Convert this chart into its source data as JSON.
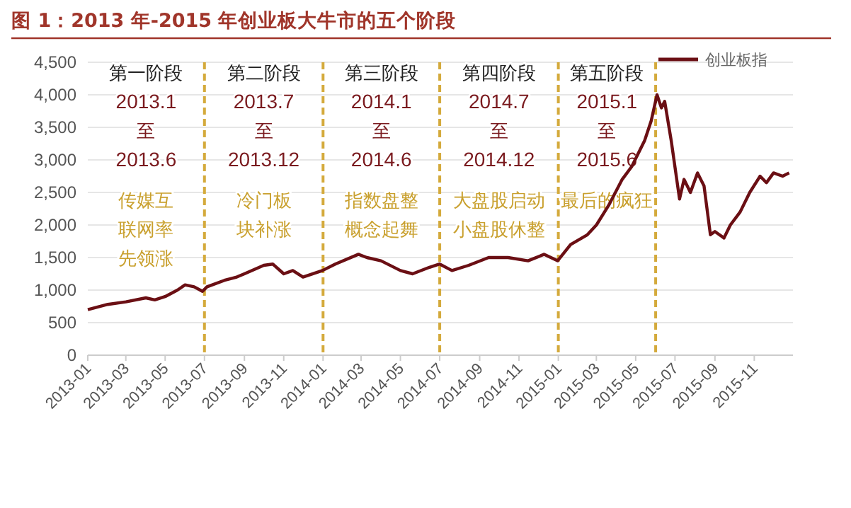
{
  "chart_data": {
    "type": "line",
    "title": "图 1：2013 年-2015 年创业板大牛市的五个阶段",
    "x": [
      "2013-01-01",
      "2013-02-01",
      "2013-03-01",
      "2013-04-01",
      "2013-04-15",
      "2013-05-01",
      "2013-05-20",
      "2013-06-01",
      "2013-06-15",
      "2013-06-28",
      "2013-07-05",
      "2013-08-01",
      "2013-08-20",
      "2013-09-01",
      "2013-10-01",
      "2013-10-15",
      "2013-11-01",
      "2013-11-15",
      "2013-12-01",
      "2013-12-31",
      "2014-01-20",
      "2014-02-25",
      "2014-03-10",
      "2014-04-01",
      "2014-05-01",
      "2014-05-20",
      "2014-06-15",
      "2014-07-01",
      "2014-07-20",
      "2014-08-15",
      "2014-09-15",
      "2014-10-15",
      "2014-11-15",
      "2014-12-10",
      "2014-12-31",
      "2015-01-20",
      "2015-02-15",
      "2015-03-01",
      "2015-03-20",
      "2015-04-10",
      "2015-04-25",
      "2015-05-15",
      "2015-05-25",
      "2015-06-03",
      "2015-06-10",
      "2015-06-15",
      "2015-06-25",
      "2015-07-08",
      "2015-07-15",
      "2015-07-25",
      "2015-08-05",
      "2015-08-15",
      "2015-08-25",
      "2015-09-01",
      "2015-09-15",
      "2015-09-25",
      "2015-10-10",
      "2015-10-25",
      "2015-11-10",
      "2015-11-20",
      "2015-12-01",
      "2015-12-15",
      "2015-12-25"
    ],
    "series": [
      {
        "name": "创业板指",
        "color": "#6b0f14",
        "values": [
          700,
          780,
          820,
          880,
          850,
          900,
          1000,
          1080,
          1050,
          980,
          1050,
          1150,
          1200,
          1250,
          1380,
          1400,
          1250,
          1300,
          1200,
          1300,
          1400,
          1550,
          1500,
          1450,
          1300,
          1250,
          1350,
          1400,
          1300,
          1380,
          1500,
          1500,
          1450,
          1550,
          1450,
          1700,
          1850,
          2000,
          2300,
          2700,
          2900,
          3300,
          3600,
          4000,
          3800,
          3900,
          3300,
          2400,
          2700,
          2500,
          2800,
          2600,
          1850,
          1900,
          1800,
          2000,
          2200,
          2500,
          2750,
          2650,
          2800,
          2750,
          2800
        ]
      }
    ],
    "xlim": [
      "2013-01-01",
      "2015-12-31"
    ],
    "xticks": [
      "2013-01",
      "2013-03",
      "2013-05",
      "2013-07",
      "2013-09",
      "2013-11",
      "2014-01",
      "2014-03",
      "2014-05",
      "2014-07",
      "2014-09",
      "2014-11",
      "2015-01",
      "2015-03",
      "2015-05",
      "2015-07",
      "2015-09",
      "2015-11"
    ],
    "ylim": [
      0,
      4500
    ],
    "yticks": [
      {
        "value": 0,
        "label": "0"
      },
      {
        "value": 500,
        "label": "500"
      },
      {
        "value": 1000,
        "label": "1,000"
      },
      {
        "value": 1500,
        "label": "1,500"
      },
      {
        "value": 2000,
        "label": "2,000"
      },
      {
        "value": 2500,
        "label": "2,500"
      },
      {
        "value": 3000,
        "label": "3,000"
      },
      {
        "value": 3500,
        "label": "3,500"
      },
      {
        "value": 4000,
        "label": "4,000"
      },
      {
        "value": 4500,
        "label": "4,500"
      }
    ],
    "grid": "y",
    "legend": "top right",
    "line_style": "solid",
    "marker": "none",
    "ref_lines": [
      {
        "axis": "x",
        "value": "2013-07-01",
        "color": "#d4aa3c",
        "line_style": "dashed"
      },
      {
        "axis": "x",
        "value": "2014-01-01",
        "color": "#d4aa3c",
        "line_style": "dashed"
      },
      {
        "axis": "x",
        "value": "2014-07-01",
        "color": "#d4aa3c",
        "line_style": "dashed"
      },
      {
        "axis": "x",
        "value": "2015-01-01",
        "color": "#d4aa3c",
        "line_style": "dashed"
      },
      {
        "axis": "x",
        "value": "2015-06-01",
        "color": "#d4aa3c",
        "line_style": "dashed"
      }
    ],
    "annotations": [
      "第一阶段",
      "2013.1",
      "至",
      "2013.6",
      "传媒互",
      "联网率",
      "先领涨",
      "第二阶段",
      "2013.7",
      "至",
      "2013.12",
      "冷门板",
      "块补涨",
      "第三阶段",
      "2014.1",
      "至",
      "2014.6",
      "指数盘整",
      "概念起舞",
      "第四阶段",
      "2014.7",
      "至",
      "2014.12",
      "大盘股启动",
      "小盘股休整",
      "第五阶段",
      "2015.1",
      "至",
      "2015.6",
      "最后的疯狂"
    ]
  }
}
